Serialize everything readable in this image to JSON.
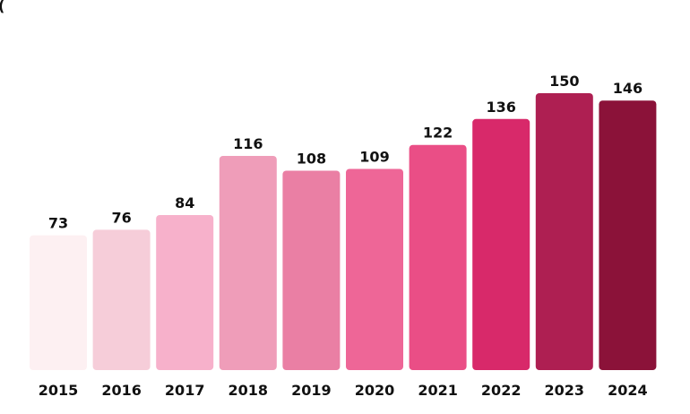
{
  "chart_data": {
    "type": "bar",
    "categories": [
      "2015",
      "2016",
      "2017",
      "2018",
      "2019",
      "2020",
      "2021",
      "2022",
      "2023",
      "2024"
    ],
    "values": [
      73,
      76,
      84,
      116,
      108,
      109,
      122,
      136,
      150,
      146
    ],
    "data_labels": [
      "73",
      "76",
      "84",
      "116",
      "108",
      "109",
      "122",
      "136",
      "150",
      "146"
    ],
    "colors": [
      "#fdf0f2",
      "#f6cdd9",
      "#f7b1cb",
      "#ef9db9",
      "#ea7fa4",
      "#ee6697",
      "#ea4e86",
      "#d8296a",
      "#ae1f52",
      "#8b1239"
    ],
    "title": "",
    "xlabel": "",
    "ylabel": "",
    "ylim": [
      0,
      150
    ],
    "grid": false,
    "legend": "none"
  }
}
